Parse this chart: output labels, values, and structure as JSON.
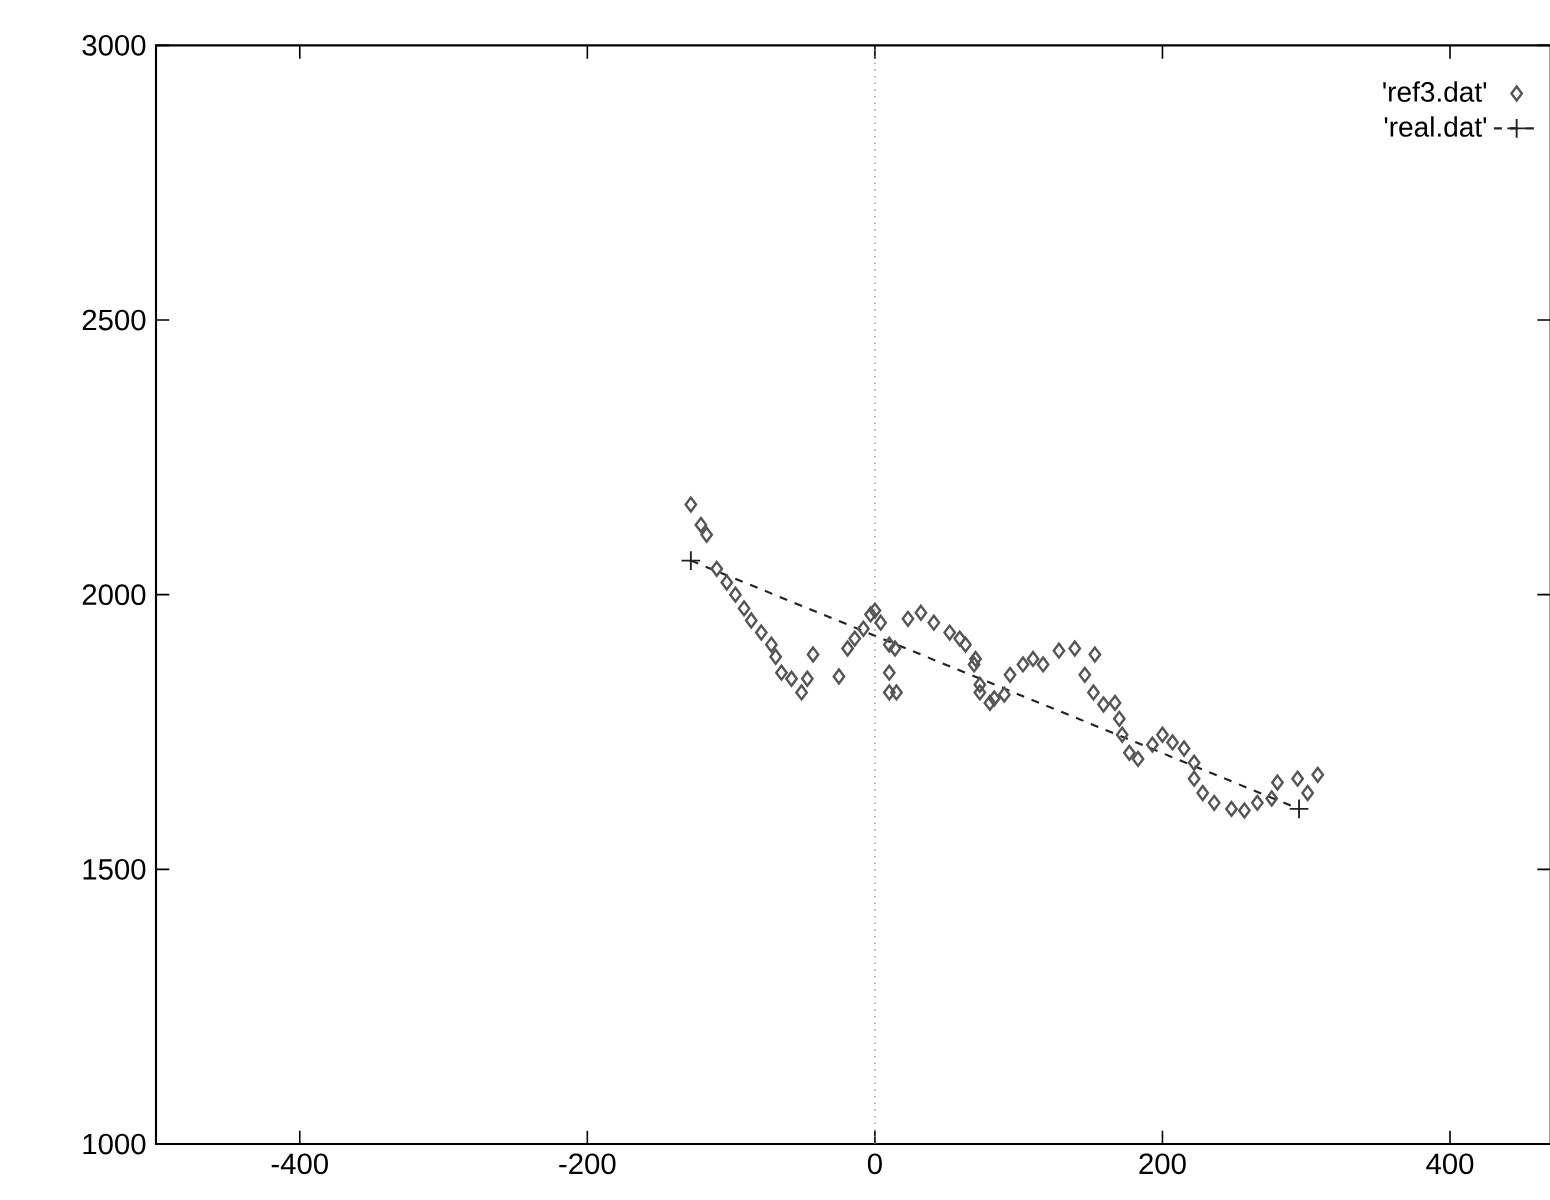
{
  "chart_data": {
    "type": "scatter",
    "xlim": [
      -500,
      470
    ],
    "ylim": [
      1000,
      3000
    ],
    "xticks": [
      -400,
      -200,
      0,
      200,
      400
    ],
    "yticks": [
      1000,
      1500,
      2000,
      2500,
      3000
    ],
    "grid": false,
    "legend": "top right",
    "ref_lines": [
      {
        "axis": "x",
        "value": 0,
        "line_style": "dotted",
        "color": "#888888"
      }
    ],
    "series": [
      {
        "name": "'ref3.dat'",
        "marker": "diamond",
        "color": "#555555",
        "x": [
          -128,
          -121,
          -117,
          -110,
          -103,
          -97,
          -91,
          -86,
          -79,
          -72,
          -69,
          -65,
          -58,
          -51,
          -47,
          -43,
          -25,
          -19,
          -14,
          -8,
          -3,
          0,
          4,
          10,
          14,
          10,
          10,
          15,
          23,
          32,
          41,
          52,
          59,
          63,
          69,
          70,
          73,
          73,
          80,
          83,
          90,
          94,
          103,
          110,
          117,
          128,
          139,
          153,
          146,
          152,
          159,
          167,
          170,
          172,
          177,
          183,
          193,
          200,
          207,
          215,
          222,
          222,
          228,
          236,
          248,
          257,
          266,
          276,
          280,
          294,
          301,
          308
        ],
        "values": [
          2164,
          2127,
          2109,
          2047,
          2022,
          2000,
          1975,
          1953,
          1931,
          1909,
          1887,
          1858,
          1847,
          1822,
          1847,
          1891,
          1851,
          1902,
          1920,
          1938,
          1964,
          1971,
          1949,
          1909,
          1902,
          1858,
          1822,
          1822,
          1956,
          1967,
          1949,
          1931,
          1920,
          1909,
          1873,
          1883,
          1836,
          1822,
          1803,
          1811,
          1818,
          1854,
          1873,
          1883,
          1873,
          1898,
          1902,
          1891,
          1854,
          1822,
          1800,
          1803,
          1774,
          1745,
          1712,
          1701,
          1727,
          1745,
          1731,
          1720,
          1694,
          1665,
          1639,
          1621,
          1610,
          1607,
          1621,
          1629,
          1658,
          1665,
          1639,
          1672
        ]
      },
      {
        "name": "'real.dat'",
        "type": "line",
        "marker": "cross",
        "line_style": "dashed",
        "color": "#222222",
        "x": [
          -128,
          295
        ],
        "values": [
          2062,
          1610
        ]
      }
    ]
  }
}
